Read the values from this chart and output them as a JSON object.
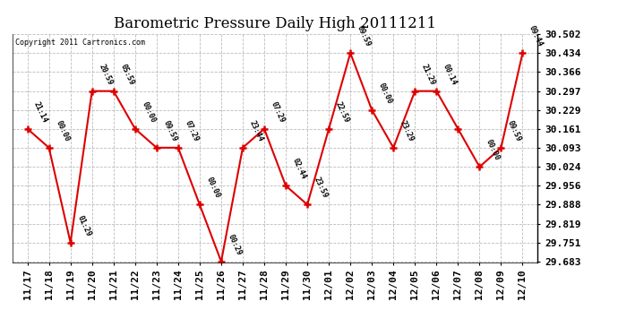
{
  "title": "Barometric Pressure Daily High 20111211",
  "copyright": "Copyright 2011 Cartronics.com",
  "x_labels": [
    "11/17",
    "11/18",
    "11/19",
    "11/20",
    "11/21",
    "11/22",
    "11/23",
    "11/24",
    "11/25",
    "11/26",
    "11/27",
    "11/28",
    "11/29",
    "11/30",
    "12/01",
    "12/02",
    "12/03",
    "12/04",
    "12/05",
    "12/06",
    "12/07",
    "12/08",
    "12/09",
    "12/10"
  ],
  "y_values": [
    30.161,
    30.093,
    29.751,
    30.297,
    30.297,
    30.161,
    30.093,
    30.093,
    29.888,
    29.683,
    30.093,
    30.161,
    29.956,
    29.888,
    30.161,
    30.434,
    30.229,
    30.093,
    30.297,
    30.297,
    30.161,
    30.024,
    30.093,
    30.434
  ],
  "time_labels": [
    "21:14",
    "00:00",
    "01:29",
    "20:59",
    "05:59",
    "00:00",
    "09:59",
    "07:29",
    "00:00",
    "00:29",
    "23:44",
    "07:29",
    "02:44",
    "23:59",
    "22:59",
    "09:59",
    "00:00",
    "23:29",
    "21:29",
    "00:14",
    "",
    "00:00",
    "09:59",
    "09:44"
  ],
  "ylim_min": 29.683,
  "ylim_max": 30.502,
  "yticks": [
    29.683,
    29.751,
    29.819,
    29.888,
    29.956,
    30.024,
    30.093,
    30.161,
    30.229,
    30.297,
    30.366,
    30.434,
    30.502
  ],
  "line_color": "#dd0000",
  "marker_color": "#dd0000",
  "bg_color": "#ffffff",
  "grid_color": "#aaaaaa",
  "title_fontsize": 12,
  "tick_fontsize": 8,
  "anno_fontsize": 6
}
